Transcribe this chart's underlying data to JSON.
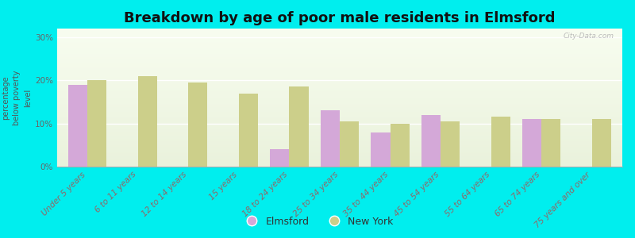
{
  "title": "Breakdown by age of poor male residents in Elmsford",
  "ylabel": "percentage\nbelow poverty\nlevel",
  "categories": [
    "Under 5 years",
    "6 to 11 years",
    "12 to 14 years",
    "15 years",
    "18 to 24 years",
    "25 to 34 years",
    "35 to 44 years",
    "45 to 54 years",
    "55 to 64 years",
    "65 to 74 years",
    "75 years and over"
  ],
  "elmsford_values": [
    19,
    null,
    null,
    null,
    4,
    13,
    8,
    12,
    null,
    11,
    null
  ],
  "newyork_values": [
    20,
    21,
    19.5,
    17,
    18.5,
    10.5,
    10,
    10.5,
    11.5,
    11,
    11
  ],
  "elmsford_color": "#d4a8d8",
  "newyork_color": "#cccf8a",
  "background_color": "#00eeee",
  "plot_bg_top": "#eaf2dc",
  "plot_bg_bottom": "#f8fdf0",
  "ylim": [
    0,
    32
  ],
  "yticks": [
    0,
    10,
    20,
    30
  ],
  "ytick_labels": [
    "0%",
    "10%",
    "20%",
    "30%"
  ],
  "watermark": "City-Data.com",
  "title_fontsize": 13,
  "label_fontsize": 7.5,
  "bar_width": 0.38
}
